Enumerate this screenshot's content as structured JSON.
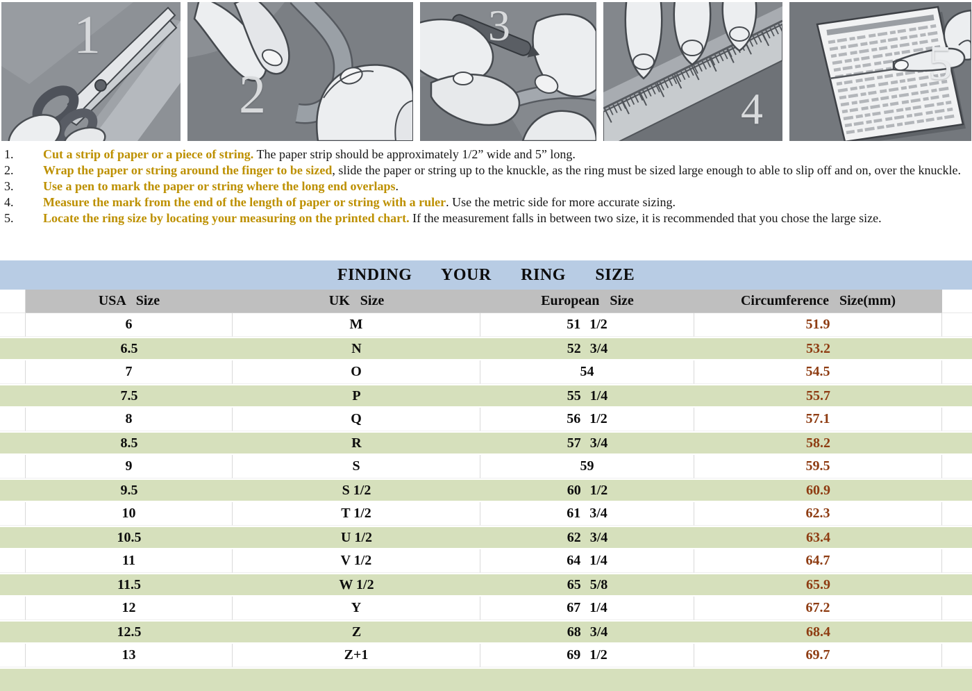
{
  "steps": [
    {
      "number": "1",
      "label": "cut a strip of paper with scissors"
    },
    {
      "number": "2",
      "label": "wrap the paper or string around the finger"
    },
    {
      "number": "3",
      "label": "mark the overlap with a pen"
    },
    {
      "number": "4",
      "label": "measure the strip with a ruler"
    },
    {
      "number": "5",
      "label": "locate the ring size on the printed chart"
    }
  ],
  "instructions": [
    {
      "num": "1.",
      "bold": "Cut a strip of paper or a piece of string.",
      "rest": " The paper strip should be approximately 1/2” wide and 5” long."
    },
    {
      "num": "2.",
      "bold": "Wrap the paper or string around the finger to be sized",
      "rest": ", slide the paper or string up to the knuckle, as the ring must be sized large enough to able to slip off and on, over the knuckle."
    },
    {
      "num": "3.",
      "bold": "Use a pen to mark the paper or string where the long end overlaps",
      "rest": "."
    },
    {
      "num": "4.",
      "bold": "Measure the mark from the end of the length of paper or string with a ruler",
      "rest": ". Use the metric side for more accurate sizing."
    },
    {
      "num": "5.",
      "bold": "Locate the ring size by locating your measuring on the printed chart.",
      "rest": " If the measurement falls in between two size, it is recommended that you chose the large size."
    }
  ],
  "table": {
    "title": "FINDING YOUR RING SIZE",
    "headers": [
      "USA Size",
      "UK Size",
      "European Size",
      "Circumference Size(mm)"
    ],
    "rows": [
      [
        "6",
        "M",
        "51 1/2",
        "51.9"
      ],
      [
        "6.5",
        "N",
        "52 3/4",
        "53.2"
      ],
      [
        "7",
        "O",
        "54",
        "54.5"
      ],
      [
        "7.5",
        "P",
        "55 1/4",
        "55.7"
      ],
      [
        "8",
        "Q",
        "56 1/2",
        "57.1"
      ],
      [
        "8.5",
        "R",
        "57 3/4",
        "58.2"
      ],
      [
        "9",
        "S",
        "59",
        "59.5"
      ],
      [
        "9.5",
        "S 1/2",
        "60 1/2",
        "60.9"
      ],
      [
        "10",
        "T 1/2",
        "61 3/4",
        "62.3"
      ],
      [
        "10.5",
        "U 1/2",
        "62 3/4",
        "63.4"
      ],
      [
        "11",
        "V 1/2",
        "64 1/4",
        "64.7"
      ],
      [
        "11.5",
        "W 1/2",
        "65 5/8",
        "65.9"
      ],
      [
        "12",
        "Y",
        "67 1/4",
        "67.2"
      ],
      [
        "12.5",
        "Z",
        "68 3/4",
        "68.4"
      ],
      [
        "13",
        "Z+1",
        "69 1/2",
        "69.7"
      ]
    ]
  },
  "colors": {
    "title_bg": "#b8cce4",
    "header_bg": "#bfbfbf",
    "row_green": "#d6e0bc",
    "gold": "#bd9000",
    "circ": "#8e3c12",
    "grid": "#d9d9d9"
  }
}
